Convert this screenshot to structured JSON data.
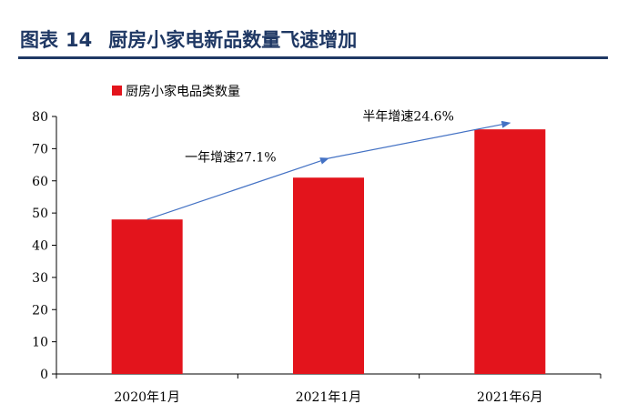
{
  "figure": {
    "label": "图表",
    "number": "14",
    "title": "厨房小家电新品数量飞速增加"
  },
  "chart_data": {
    "type": "bar",
    "categories": [
      "2020年1月",
      "2021年1月",
      "2021年6月"
    ],
    "series": [
      {
        "name": "厨房小家电品类数量",
        "values": [
          48,
          61,
          76
        ]
      }
    ],
    "ylim": [
      0,
      80
    ],
    "yticks": [
      0,
      10,
      20,
      30,
      40,
      50,
      60,
      70,
      80
    ],
    "grid": false,
    "legend_position": "top-left",
    "colors": {
      "bar": "#e3141c",
      "arrow": "#4472c4"
    },
    "annotations": [
      {
        "text": "一年增速27.1%",
        "from_category": 0,
        "to_category": 1,
        "from_value": 48,
        "to_value": 67
      },
      {
        "text": "半年增速24.6%",
        "from_category": 1,
        "to_category": 2,
        "from_value": 67,
        "to_value": 78
      }
    ]
  }
}
